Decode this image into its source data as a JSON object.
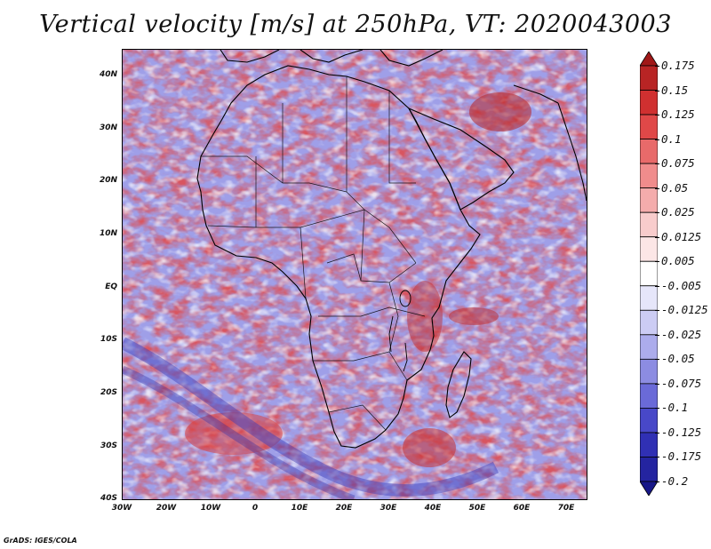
{
  "title": "Vertical velocity [m/s] at 250hPa, VT: 2020043003",
  "footer": "GrADS: IGES/COLA",
  "map": {
    "lat_ticks": [
      "40N",
      "30N",
      "20N",
      "10N",
      "EQ",
      "10S",
      "20S",
      "30S",
      "40S"
    ],
    "lon_ticks": [
      "30W",
      "20W",
      "10W",
      "0",
      "10E",
      "20E",
      "30E",
      "40E",
      "50E",
      "60E",
      "70E"
    ],
    "lon_range": [
      -30,
      75
    ],
    "lat_range": [
      -40,
      45
    ],
    "field": "vertical velocity (omega-like) at 250hPa"
  },
  "colorbar": {
    "labels": [
      "0.175",
      "0.15",
      "0.125",
      "0.1",
      "0.075",
      "0.05",
      "0.025",
      "0.0125",
      "0.005",
      "-0.005",
      "-0.0125",
      "-0.025",
      "-0.05",
      "-0.075",
      "-0.1",
      "-0.125",
      "-0.175",
      "-0.2"
    ],
    "colors": [
      "#a01818",
      "#b82424",
      "#d03030",
      "#e04848",
      "#e86a6a",
      "#f08c8c",
      "#f4acac",
      "#f8cccc",
      "#fce6e6",
      "#ffffff",
      "#e6e6fa",
      "#ccccf4",
      "#acacec",
      "#8c8ce2",
      "#6a6ad8",
      "#4848c8",
      "#3030b4",
      "#2424a0",
      "#181888"
    ]
  }
}
